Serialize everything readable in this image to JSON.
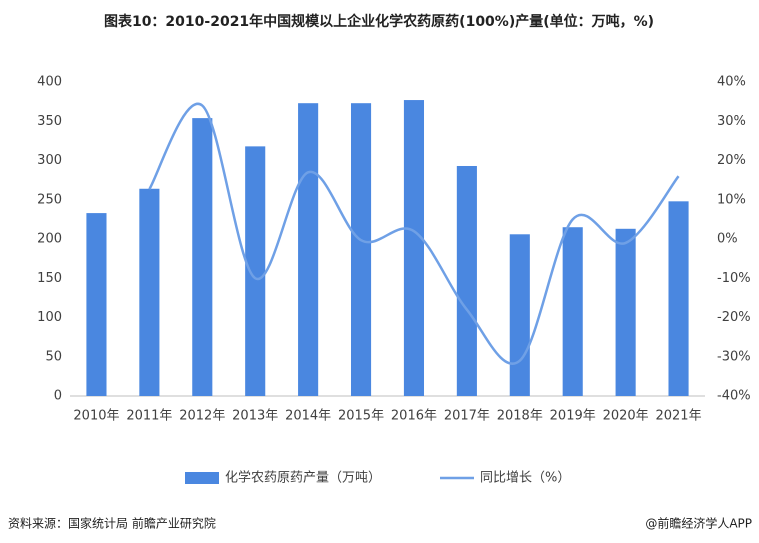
{
  "chart_data": {
    "type": "bar-line",
    "title": "图表10：2010-2021年中国规模以上企业化学农药原药(100%)产量(单位：万吨，%)",
    "categories": [
      "2010年",
      "2011年",
      "2012年",
      "2013年",
      "2014年",
      "2015年",
      "2016年",
      "2017年",
      "2018年",
      "2019年",
      "2020年",
      "2021年"
    ],
    "series": [
      {
        "name": "化学农药原药产量（万吨）",
        "type": "bar",
        "color": "#4a87e0",
        "values": [
          233,
          264,
          354,
          318,
          373,
          373,
          377,
          293,
          206,
          215,
          213,
          248
        ]
      },
      {
        "name": "同比增长（%）",
        "type": "line",
        "axis": "y2",
        "color": "#6fa0e6",
        "values": [
          null,
          12.7,
          34,
          -10,
          17,
          -0.3,
          2,
          -18,
          -31,
          5,
          -1,
          16
        ]
      }
    ],
    "ylim": [
      0,
      400
    ],
    "yticks": [
      0,
      50,
      100,
      150,
      200,
      250,
      300,
      350,
      400
    ],
    "y2lim": [
      -40,
      40
    ],
    "y2ticks": [
      {
        "value": -40,
        "label": "-40%"
      },
      {
        "value": -30,
        "label": "-30%"
      },
      {
        "value": -20,
        "label": "-20%"
      },
      {
        "value": -10,
        "label": "-10%"
      },
      {
        "value": 0,
        "label": "0%"
      },
      {
        "value": 10,
        "label": "10%"
      },
      {
        "value": 20,
        "label": "20%"
      },
      {
        "value": 30,
        "label": "30%"
      },
      {
        "value": 40,
        "label": "40%"
      }
    ],
    "legend": "bottom",
    "source": "资料来源：国家统计局 前瞻产业研究院",
    "credit": "@前瞻经济学人APP"
  }
}
